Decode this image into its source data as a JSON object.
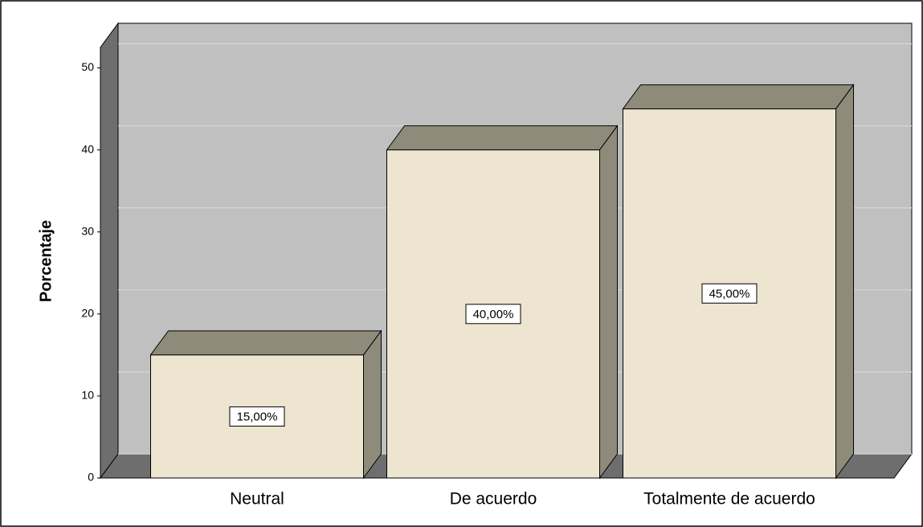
{
  "chart_data": {
    "type": "bar3d",
    "ylabel": "Porcentaje",
    "categories": [
      "Neutral",
      "De acuerdo",
      "Totalmente de acuerdo"
    ],
    "values": [
      15,
      40,
      45
    ],
    "value_labels": [
      "15,00%",
      "40,00%",
      "45,00%"
    ],
    "color": "#ede5cf",
    "ylim": [
      0,
      52.5
    ],
    "yticks": [
      0,
      10,
      20,
      30,
      40,
      50
    ],
    "grid": true
  }
}
